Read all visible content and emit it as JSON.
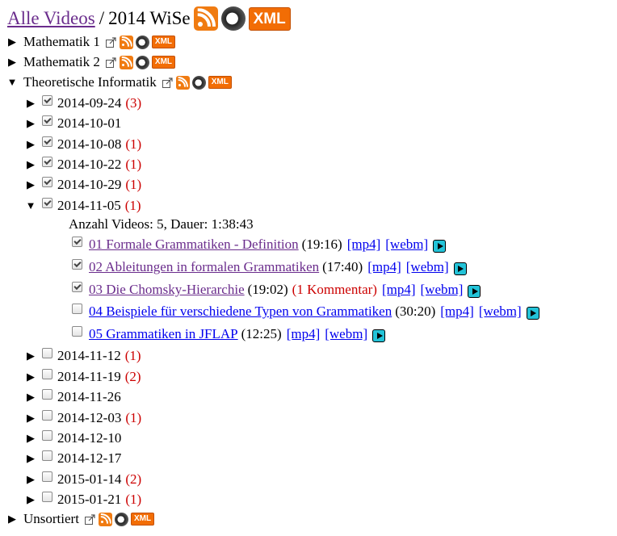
{
  "header": {
    "crumb_link": "Alle Videos",
    "separator": "/",
    "semester": "2014 WiSe",
    "xml_label": "XML"
  },
  "courses": [
    {
      "label": "Mathematik 1",
      "expanded": false,
      "xml_label": "XML"
    },
    {
      "label": "Mathematik 2",
      "expanded": false,
      "xml_label": "XML"
    },
    {
      "label": "Theoretische Informatik",
      "expanded": true,
      "xml_label": "XML"
    },
    {
      "label": "Unsortiert",
      "expanded": false,
      "xml_label": "XML"
    }
  ],
  "dates": [
    {
      "date": "2014-09-24",
      "count": "(3)",
      "checked": true
    },
    {
      "date": "2014-10-01",
      "count": "",
      "checked": true
    },
    {
      "date": "2014-10-08",
      "count": "(1)",
      "checked": true
    },
    {
      "date": "2014-10-22",
      "count": "(1)",
      "checked": true
    },
    {
      "date": "2014-10-29",
      "count": "(1)",
      "checked": true
    },
    {
      "date": "2014-11-05",
      "count": "(1)",
      "checked": true,
      "expanded": true
    },
    {
      "date": "2014-11-12",
      "count": "(1)",
      "checked": false
    },
    {
      "date": "2014-11-19",
      "count": "(2)",
      "checked": false
    },
    {
      "date": "2014-11-26",
      "count": "",
      "checked": false
    },
    {
      "date": "2014-12-03",
      "count": "(1)",
      "checked": false
    },
    {
      "date": "2014-12-10",
      "count": "",
      "checked": false
    },
    {
      "date": "2014-12-17",
      "count": "",
      "checked": false
    },
    {
      "date": "2015-01-14",
      "count": "(2)",
      "checked": false
    },
    {
      "date": "2015-01-21",
      "count": "(1)",
      "checked": false
    }
  ],
  "session_info": "Anzahl Videos: 5, Dauer: 1:38:43",
  "videos": [
    {
      "title": "01 Formale Grammatiken - Definition",
      "duration": "(19:16)",
      "comment": "",
      "mp4": "[mp4]",
      "webm": "[webm]",
      "checked": true,
      "visited": true
    },
    {
      "title": "02 Ableitungen in formalen Grammatiken",
      "duration": "(17:40)",
      "comment": "",
      "mp4": "[mp4]",
      "webm": "[webm]",
      "checked": true,
      "visited": true
    },
    {
      "title": "03 Die Chomsky-Hierarchie",
      "duration": "(19:02)",
      "comment": "(1 Kommentar)",
      "mp4": "[mp4]",
      "webm": "[webm]",
      "checked": true,
      "visited": true
    },
    {
      "title": "04 Beispiele für verschiedene Typen von Grammatiken",
      "duration": "(30:20)",
      "comment": "",
      "mp4": "[mp4]",
      "webm": "[webm]",
      "checked": false,
      "visited": false
    },
    {
      "title": "05 Grammatiken in JFLAP",
      "duration": "(12:25)",
      "comment": "",
      "mp4": "[mp4]",
      "webm": "[webm]",
      "checked": false,
      "visited": false
    }
  ],
  "icons": {
    "expanded": "down-triangle-icon",
    "collapsed": "right-triangle-icon",
    "external": "external-link-icon",
    "feed": "rss-icon",
    "podcast": "podcast-icon",
    "xml": "xml-icon",
    "play": "play-icon"
  },
  "colors": {
    "count_red": "#cc0000",
    "link_blue": "#0000ee",
    "visited_purple": "#6a2c8c",
    "rss_orange": "#f07b11",
    "play_cyan": "#23c3d8"
  }
}
